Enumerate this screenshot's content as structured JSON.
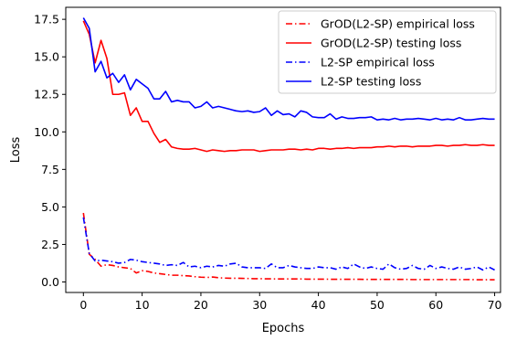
{
  "chart_data": {
    "type": "line",
    "xlabel": "Epochs",
    "ylabel": "Loss",
    "xlim": [
      -3,
      71
    ],
    "ylim": [
      -0.7,
      18.3
    ],
    "xticks": [
      0,
      10,
      20,
      30,
      40,
      50,
      60,
      70
    ],
    "yticks": [
      0.0,
      2.5,
      5.0,
      7.5,
      10.0,
      12.5,
      15.0,
      17.5
    ],
    "ytick_labels": [
      "0.0",
      "2.5",
      "5.0",
      "7.5",
      "10.0",
      "12.5",
      "15.0",
      "17.5"
    ],
    "grid": false,
    "legend_position": "top-right",
    "x": [
      0,
      1,
      2,
      3,
      4,
      5,
      6,
      7,
      8,
      9,
      10,
      11,
      12,
      13,
      14,
      15,
      16,
      17,
      18,
      19,
      20,
      21,
      22,
      23,
      24,
      25,
      26,
      27,
      28,
      29,
      30,
      31,
      32,
      33,
      34,
      35,
      36,
      37,
      38,
      39,
      40,
      41,
      42,
      43,
      44,
      45,
      46,
      47,
      48,
      49,
      50,
      51,
      52,
      53,
      54,
      55,
      56,
      57,
      58,
      59,
      60,
      61,
      62,
      63,
      64,
      65,
      66,
      67,
      68,
      69,
      70
    ],
    "series": [
      {
        "name": "GrOD(L2-SP) empirical loss",
        "color": "#ff0000",
        "dash": "dashdot",
        "values": [
          4.6,
          1.85,
          1.5,
          1.05,
          1.15,
          1.1,
          1.0,
          0.95,
          0.9,
          0.6,
          0.75,
          0.7,
          0.6,
          0.55,
          0.5,
          0.45,
          0.45,
          0.42,
          0.4,
          0.35,
          0.32,
          0.3,
          0.33,
          0.28,
          0.26,
          0.25,
          0.25,
          0.24,
          0.23,
          0.22,
          0.22,
          0.21,
          0.21,
          0.2,
          0.2,
          0.2,
          0.2,
          0.2,
          0.19,
          0.19,
          0.19,
          0.19,
          0.18,
          0.18,
          0.18,
          0.18,
          0.18,
          0.18,
          0.17,
          0.17,
          0.17,
          0.17,
          0.17,
          0.17,
          0.17,
          0.17,
          0.16,
          0.16,
          0.16,
          0.16,
          0.16,
          0.16,
          0.16,
          0.16,
          0.16,
          0.16,
          0.16,
          0.15,
          0.15,
          0.15,
          0.15
        ]
      },
      {
        "name": "GrOD(L2-SP) testing loss",
        "color": "#ff0000",
        "dash": "solid",
        "values": [
          17.4,
          16.5,
          14.6,
          16.1,
          14.9,
          12.5,
          12.5,
          12.6,
          11.1,
          11.6,
          10.7,
          10.7,
          9.9,
          9.3,
          9.5,
          9.0,
          8.9,
          8.85,
          8.85,
          8.9,
          8.8,
          8.7,
          8.8,
          8.75,
          8.7,
          8.75,
          8.75,
          8.8,
          8.8,
          8.8,
          8.7,
          8.75,
          8.8,
          8.8,
          8.8,
          8.85,
          8.85,
          8.8,
          8.85,
          8.8,
          8.9,
          8.9,
          8.85,
          8.9,
          8.9,
          8.95,
          8.9,
          8.95,
          8.95,
          8.95,
          9.0,
          9.0,
          9.05,
          9.0,
          9.05,
          9.05,
          9.0,
          9.05,
          9.05,
          9.05,
          9.1,
          9.1,
          9.05,
          9.1,
          9.1,
          9.15,
          9.1,
          9.1,
          9.15,
          9.1,
          9.1
        ]
      },
      {
        "name": "L2-SP empirical loss",
        "color": "#0000ff",
        "dash": "dashdot",
        "values": [
          4.3,
          1.9,
          1.4,
          1.45,
          1.4,
          1.35,
          1.25,
          1.3,
          1.5,
          1.45,
          1.35,
          1.3,
          1.25,
          1.2,
          1.1,
          1.15,
          1.1,
          1.3,
          1.0,
          1.05,
          0.95,
          1.05,
          1.0,
          1.1,
          1.05,
          1.2,
          1.25,
          1.0,
          0.95,
          0.95,
          0.95,
          0.9,
          1.2,
          0.95,
          0.95,
          1.1,
          1.0,
          0.95,
          0.9,
          0.9,
          1.0,
          0.95,
          0.95,
          0.85,
          1.0,
          0.9,
          1.2,
          1.0,
          0.9,
          1.0,
          0.9,
          0.85,
          1.2,
          0.95,
          0.85,
          0.9,
          1.1,
          0.9,
          0.85,
          1.1,
          0.9,
          1.0,
          0.9,
          0.85,
          1.0,
          0.85,
          0.9,
          1.0,
          0.8,
          1.0,
          0.8
        ]
      },
      {
        "name": "L2-SP testing loss",
        "color": "#0000ff",
        "dash": "solid",
        "values": [
          17.6,
          16.9,
          14.0,
          14.7,
          13.6,
          13.9,
          13.3,
          13.8,
          12.8,
          13.5,
          13.2,
          12.9,
          12.2,
          12.2,
          12.7,
          12.0,
          12.1,
          12.0,
          12.0,
          11.6,
          11.7,
          12.0,
          11.6,
          11.7,
          11.6,
          11.5,
          11.4,
          11.35,
          11.4,
          11.3,
          11.35,
          11.6,
          11.1,
          11.4,
          11.15,
          11.2,
          11.0,
          11.4,
          11.3,
          11.0,
          10.95,
          10.95,
          11.2,
          10.85,
          11.0,
          10.9,
          10.9,
          10.95,
          10.95,
          11.0,
          10.8,
          10.85,
          10.8,
          10.9,
          10.8,
          10.85,
          10.85,
          10.9,
          10.85,
          10.8,
          10.9,
          10.8,
          10.85,
          10.8,
          10.95,
          10.8,
          10.8,
          10.85,
          10.9,
          10.85,
          10.85
        ]
      }
    ]
  }
}
